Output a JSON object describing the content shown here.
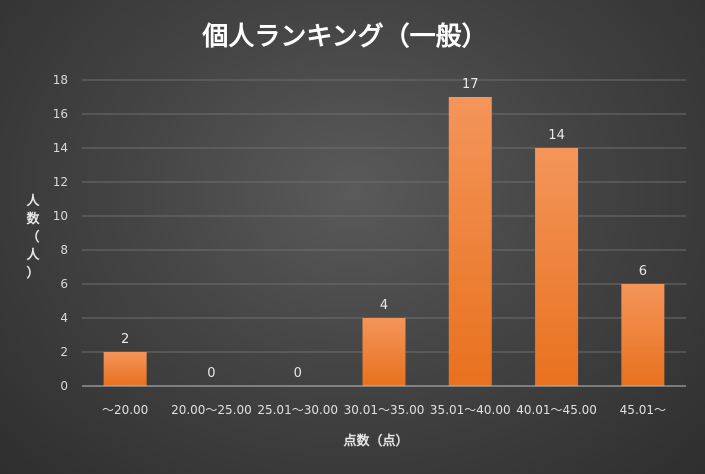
{
  "chart_data": {
    "type": "bar",
    "title": "個人ランキング（一般）",
    "xlabel": "点数（点）",
    "ylabel": "人数（人）",
    "categories": [
      "～20.00",
      "20.00～25.00",
      "25.01～30.00",
      "30.01～35.00",
      "35.01～40.00",
      "40.01～45.00",
      "45.01～"
    ],
    "values": [
      2,
      0,
      0,
      4,
      17,
      14,
      6
    ],
    "ylim": [
      0,
      18
    ],
    "yticks": [
      0,
      2,
      4,
      6,
      8,
      10,
      12,
      14,
      16,
      18
    ],
    "grid": true,
    "legend": "none",
    "bar_color": "#ED7D31"
  }
}
